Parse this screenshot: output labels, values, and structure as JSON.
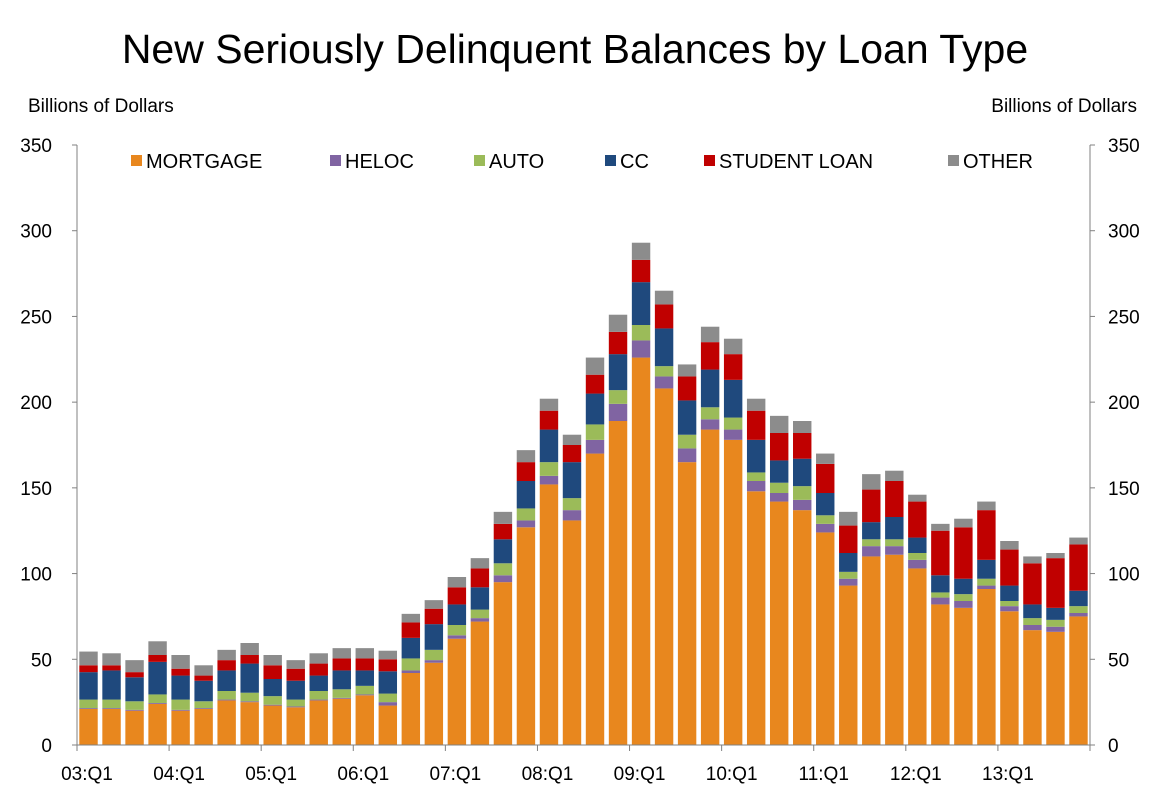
{
  "chart_data": {
    "type": "bar",
    "stacked": true,
    "title": "New Seriously Delinquent Balances by Loan Type",
    "ylabel_left": "Billions of Dollars",
    "ylabel_right": "Billions of Dollars",
    "ylim": [
      0,
      350
    ],
    "yticks": [
      0,
      50,
      100,
      150,
      200,
      250,
      300,
      350
    ],
    "legend_position": "top",
    "grid": false,
    "categories": [
      "03:Q1",
      "03:Q2",
      "03:Q3",
      "03:Q4",
      "04:Q1",
      "04:Q2",
      "04:Q3",
      "04:Q4",
      "05:Q1",
      "05:Q2",
      "05:Q3",
      "05:Q4",
      "06:Q1",
      "06:Q2",
      "06:Q3",
      "06:Q4",
      "07:Q1",
      "07:Q2",
      "07:Q3",
      "07:Q4",
      "08:Q1",
      "08:Q2",
      "08:Q3",
      "08:Q4",
      "09:Q1",
      "09:Q2",
      "09:Q3",
      "09:Q4",
      "10:Q1",
      "10:Q2",
      "10:Q3",
      "10:Q4",
      "11:Q1",
      "11:Q2",
      "11:Q3",
      "11:Q4",
      "12:Q1",
      "12:Q2",
      "12:Q3",
      "12:Q4",
      "13:Q1",
      "13:Q2",
      "13:Q3",
      "13:Q4"
    ],
    "x_tick_labels": [
      "03:Q1",
      "04:Q1",
      "05:Q1",
      "06:Q1",
      "07:Q1",
      "08:Q1",
      "09:Q1",
      "10:Q1",
      "11:Q1",
      "12:Q1",
      "13:Q1"
    ],
    "series": [
      {
        "name": "MORTGAGE",
        "color": "#E8871E",
        "values": [
          21,
          21,
          20,
          24,
          20,
          21,
          26,
          25,
          23,
          22,
          26,
          27,
          29,
          23,
          42,
          48,
          62,
          72,
          95,
          127,
          152,
          131,
          170,
          189,
          226,
          208,
          165,
          184,
          178,
          148,
          142,
          137,
          124,
          93,
          110,
          111,
          103,
          82,
          80,
          91,
          78,
          67,
          66,
          75
        ]
      },
      {
        "name": "HELOC",
        "color": "#8064A2",
        "values": [
          0.5,
          0.5,
          0.5,
          0.5,
          0.5,
          0.5,
          0.5,
          0.5,
          0.5,
          0.5,
          0.5,
          0.5,
          0.5,
          2,
          1.5,
          1.5,
          2,
          2,
          4,
          4,
          5,
          6,
          8,
          10,
          10,
          7,
          8,
          6,
          6,
          6,
          5,
          6,
          5,
          4,
          6,
          5,
          5,
          4,
          4,
          2,
          3,
          3,
          3,
          2
        ]
      },
      {
        "name": "AUTO",
        "color": "#9BBB59",
        "values": [
          5,
          5,
          5,
          5,
          6,
          4,
          5,
          5,
          5,
          4,
          5,
          5,
          5,
          5,
          7,
          6,
          6,
          5,
          7,
          7,
          8,
          7,
          9,
          8,
          9,
          6,
          8,
          7,
          7,
          5,
          6,
          8,
          5,
          4,
          4,
          4,
          4,
          3,
          4,
          4,
          3,
          4,
          4,
          4
        ]
      },
      {
        "name": "CC",
        "color": "#1F497D",
        "values": [
          16,
          17,
          14,
          19,
          14,
          12,
          12,
          17,
          10,
          11,
          9,
          11,
          9,
          13,
          12,
          15,
          12,
          13,
          14,
          16,
          19,
          21,
          18,
          21,
          25,
          22,
          20,
          22,
          22,
          19,
          13,
          16,
          13,
          11,
          10,
          13,
          9,
          10,
          9,
          11,
          9,
          8,
          7,
          9
        ]
      },
      {
        "name": "STUDENT LOAN",
        "color": "#C00000",
        "values": [
          4,
          3,
          3,
          4,
          4,
          3,
          6,
          5,
          8,
          7,
          7,
          7,
          7,
          7,
          9,
          9,
          10,
          11,
          9,
          11,
          11,
          10,
          11,
          13,
          13,
          14,
          14,
          16,
          15,
          17,
          16,
          15,
          17,
          16,
          19,
          21,
          21,
          26,
          30,
          29,
          21,
          24,
          29,
          27
        ]
      },
      {
        "name": "OTHER",
        "color": "#8C8C8C",
        "values": [
          8,
          7,
          7,
          8,
          8,
          6,
          6,
          7,
          6,
          5,
          6,
          6,
          6,
          5,
          5,
          5,
          6,
          6,
          7,
          7,
          7,
          6,
          10,
          10,
          10,
          8,
          7,
          9,
          9,
          7,
          10,
          7,
          6,
          8,
          9,
          6,
          4,
          4,
          5,
          5,
          5,
          4,
          3,
          4
        ]
      }
    ]
  }
}
